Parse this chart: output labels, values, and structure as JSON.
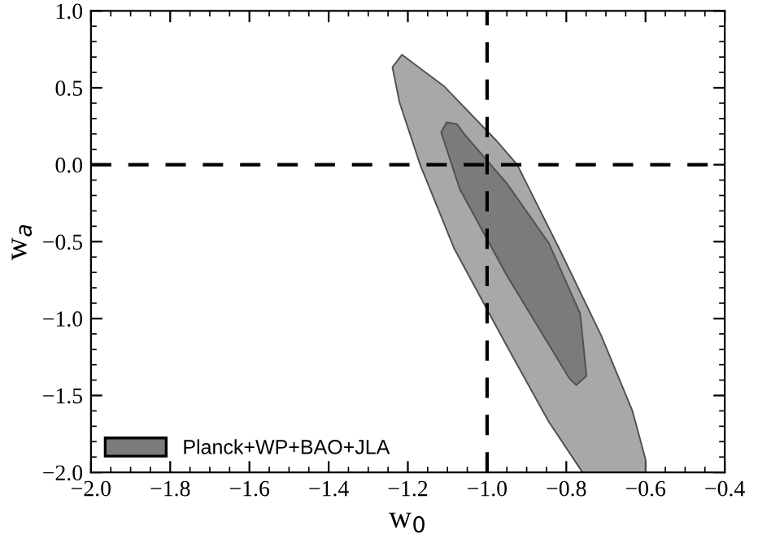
{
  "chart_data": {
    "type": "area",
    "xlabel": "w$_{0}$",
    "ylabel": "w$_{a}$",
    "series": [
      {
        "color": "#a8a8a8",
        "x": [
          -1.215,
          -1.109,
          -0.977,
          -0.924,
          -0.818,
          -0.712,
          -0.633,
          -0.6,
          -0.6,
          -0.759,
          -0.844,
          -0.95,
          -1.083,
          -1.169,
          -1.221,
          -1.239,
          -1.215
        ],
        "values": [
          0.715,
          0.511,
          0.158,
          0.0,
          -0.545,
          -1.109,
          -1.601,
          -1.914,
          -2.0,
          -2.0,
          -1.672,
          -1.179,
          -0.545,
          0.0,
          0.405,
          0.634,
          0.715
        ]
      },
      {
        "name": "Planck+WP+BAO+JLA",
        "color": "#7b7b7b",
        "x": [
          -1.102,
          -1.076,
          -1.056,
          -0.95,
          -0.844,
          -0.765,
          -0.749,
          -0.775,
          -0.792,
          -0.95,
          -1.069,
          -1.116,
          -1.102
        ],
        "values": [
          0.275,
          0.264,
          0.194,
          -0.122,
          -0.51,
          -0.968,
          -1.373,
          -1.432,
          -1.39,
          -0.721,
          -0.158,
          0.211,
          0.275
        ]
      }
    ],
    "xlim": [
      -2.0,
      -0.4
    ],
    "ylim": [
      -2.0,
      1.0
    ],
    "xticks": [
      {
        "value": -2.0,
        "label": "−2.0"
      },
      {
        "value": -1.8,
        "label": "−1.8"
      },
      {
        "value": -1.6,
        "label": "−1.6"
      },
      {
        "value": -1.4,
        "label": "−1.4"
      },
      {
        "value": -1.2,
        "label": "−1.2"
      },
      {
        "value": -1.0,
        "label": "−1.0"
      },
      {
        "value": -0.8,
        "label": "−0.8"
      },
      {
        "value": -0.6,
        "label": "−0.6"
      },
      {
        "value": -0.4,
        "label": "−0.4"
      }
    ],
    "yticks": [
      {
        "value": -2.0,
        "label": "−2.0"
      },
      {
        "value": -1.5,
        "label": "−1.5"
      },
      {
        "value": -1.0,
        "label": "−1.0"
      },
      {
        "value": -0.5,
        "label": "−0.5"
      },
      {
        "value": 0.0,
        "label": "0.0"
      },
      {
        "value": 0.5,
        "label": "0.5"
      },
      {
        "value": 1.0,
        "label": "1.0"
      }
    ],
    "ref_lines": [
      {
        "axis": "x",
        "value": -1.0,
        "line_style": "dashed",
        "color": "#000000"
      },
      {
        "axis": "y",
        "value": 0.0,
        "line_style": "dashed",
        "color": "#000000"
      }
    ],
    "legend": "bottom left",
    "grid": false
  }
}
